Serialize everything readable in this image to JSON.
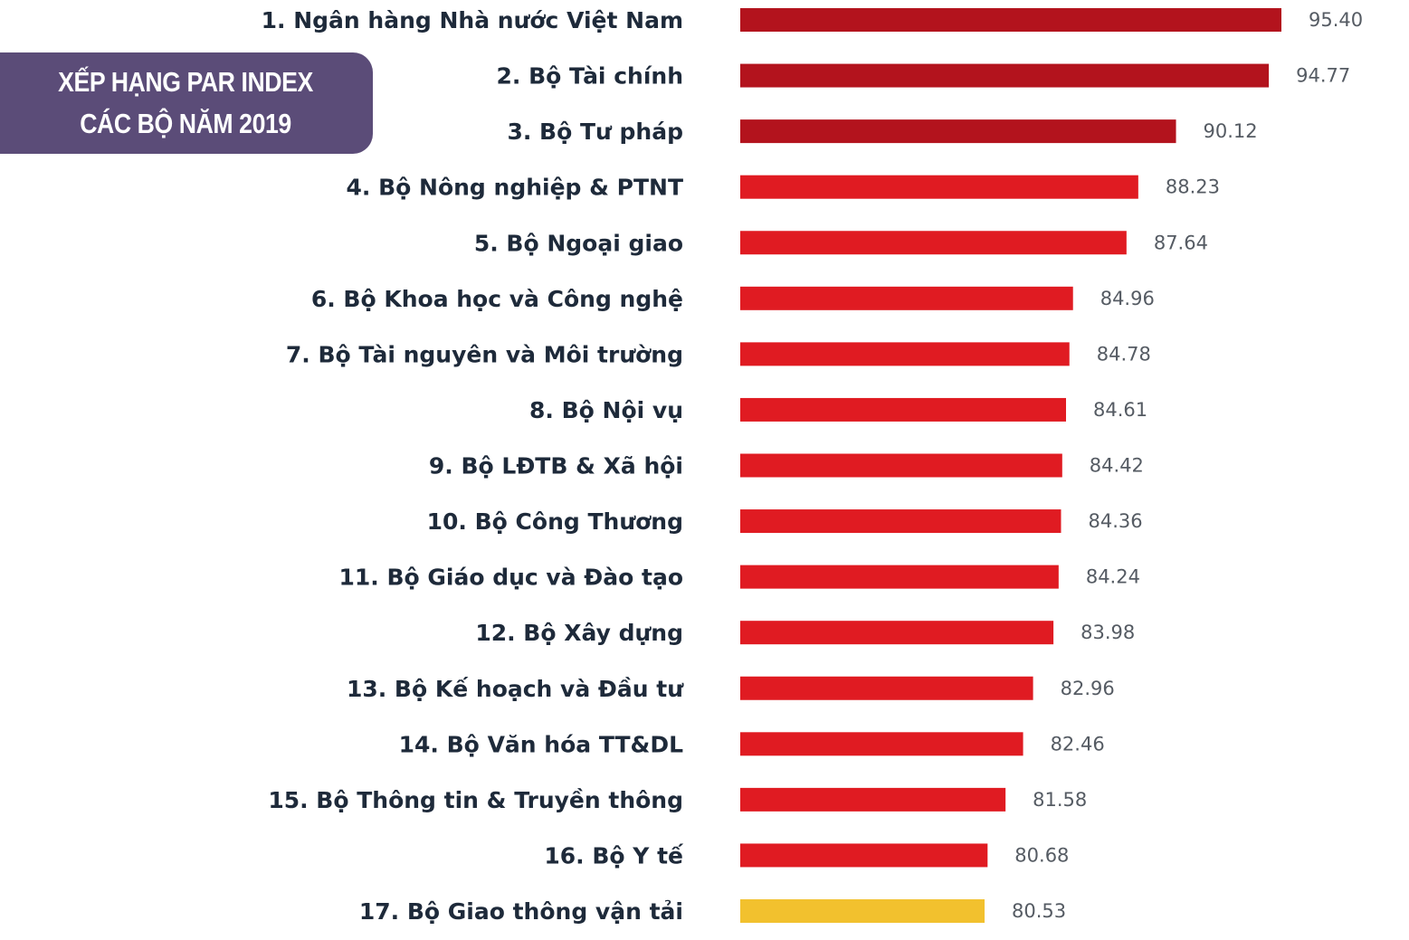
{
  "chart_data": {
    "type": "bar",
    "orientation": "horizontal",
    "title": "XẾP HẠNG PAR INDEX CÁC BỘ NĂM 2019",
    "title_lines": [
      "XẾP HẠNG PAR INDEX",
      "CÁC BỘ NĂM 2019"
    ],
    "xlabel": "",
    "ylabel": "",
    "xlim": [
      0,
      100
    ],
    "grid": false,
    "legend": "none",
    "categories": [
      "1. Ngân hàng Nhà nước Việt Nam",
      "2. Bộ Tài chính",
      "3. Bộ Tư pháp",
      "4. Bộ Nông nghiệp & PTNT",
      "5. Bộ Ngoại giao",
      "6. Bộ Khoa học và Công nghệ",
      "7. Bộ Tài nguyên và Môi trường",
      "8. Bộ Nội vụ",
      "9. Bộ LĐTB & Xã hội",
      "10. Bộ Công Thương",
      "11. Bộ Giáo dục và Đào tạo",
      "12. Bộ Xây dựng",
      "13. Bộ Kế hoạch và Đầu tư",
      "14. Bộ Văn hóa TT&DL",
      "15. Bộ Thông tin & Truyền thông",
      "16. Bộ Y tế",
      "17. Bộ Giao thông vận tải"
    ],
    "values": [
      95.4,
      94.77,
      90.12,
      88.23,
      87.64,
      84.96,
      84.78,
      84.61,
      84.42,
      84.36,
      84.24,
      83.98,
      82.96,
      82.46,
      81.58,
      80.68,
      80.53
    ],
    "value_labels": [
      "95.40",
      "94.77",
      "90.12",
      "88.23",
      "87.64",
      "84.96",
      "84.78",
      "84.61",
      "84.42",
      "84.36",
      "84.24",
      "83.98",
      "82.96",
      "82.46",
      "81.58",
      "80.68",
      "80.53"
    ],
    "bar_colors": [
      "#b3131d",
      "#b3131d",
      "#b3131d",
      "#e01b22",
      "#e01b22",
      "#e01b22",
      "#e01b22",
      "#e01b22",
      "#e01b22",
      "#e01b22",
      "#e01b22",
      "#e01b22",
      "#e01b22",
      "#e01b22",
      "#e01b22",
      "#e01b22",
      "#f2c12e"
    ]
  }
}
